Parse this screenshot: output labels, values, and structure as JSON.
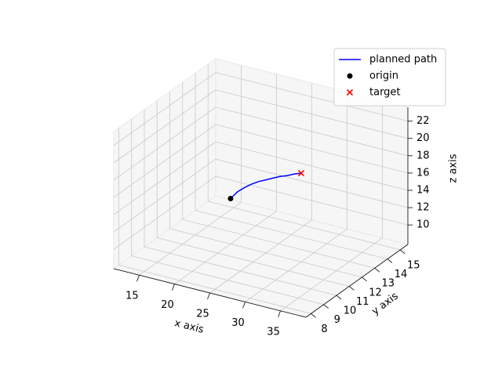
{
  "chart_data": {
    "type": "line3d",
    "xlabel": "x axis",
    "ylabel": "y axis",
    "zlabel": "z axis",
    "xlim": [
      11.4,
      38.6
    ],
    "ylim": [
      7.6,
      15.6
    ],
    "zlim": [
      7.75,
      23.6
    ],
    "xticks": [
      15,
      20,
      25,
      30,
      35
    ],
    "yticks": [
      8,
      9,
      10,
      11,
      12,
      13,
      14,
      15
    ],
    "zticks": [
      10,
      12,
      14,
      16,
      18,
      20,
      22
    ],
    "grid": true,
    "legend": "upper right",
    "series": [
      {
        "name": "planned path",
        "color": "#0000ff",
        "marker": "none",
        "x": [
          20,
          21,
          22,
          23,
          24,
          25,
          26,
          27,
          28,
          29,
          30
        ],
        "y": [
          12,
          12,
          12,
          12,
          12,
          12,
          12,
          12,
          12,
          12,
          12
        ],
        "z": [
          13,
          14.0,
          14.7,
          15.3,
          15.8,
          16.2,
          16.6,
          17.0,
          17.3,
          17.7,
          18
        ]
      },
      {
        "name": "origin",
        "color": "#000000",
        "marker": "o",
        "x": [
          20
        ],
        "y": [
          12
        ],
        "z": [
          13
        ]
      },
      {
        "name": "target",
        "color": "#ff0000",
        "marker": "x",
        "x": [
          30
        ],
        "y": [
          12
        ],
        "z": [
          18
        ]
      }
    ]
  }
}
